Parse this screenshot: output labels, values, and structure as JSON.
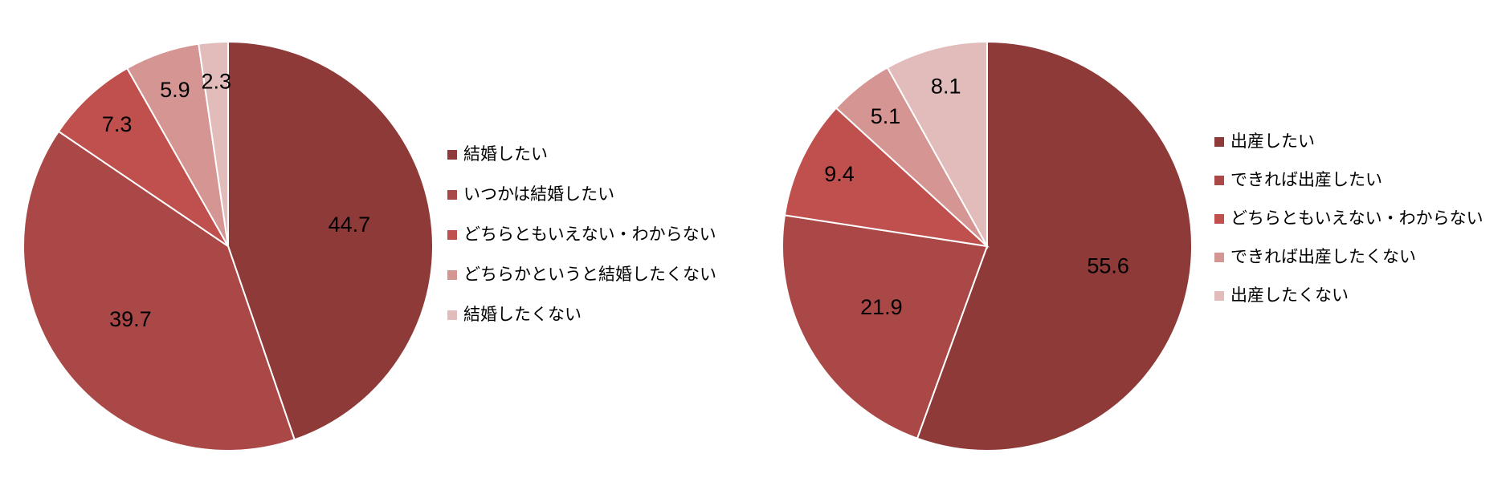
{
  "chart_data": [
    {
      "type": "pie",
      "categories": [
        "結婚したい",
        "いつかは結婚したい",
        "どちらともいえない・わからない",
        "どちらかというと結婚したくない",
        "結婚したくない"
      ],
      "values": [
        44.7,
        39.7,
        7.3,
        5.9,
        2.3
      ],
      "colors": [
        "#8e3a38",
        "#a94846",
        "#c0504d",
        "#d49593",
        "#e2bcbb"
      ]
    },
    {
      "type": "pie",
      "categories": [
        "出産したい",
        "できれば出産したい",
        "どちらともいえない・わからない",
        "できれば出産したくない",
        "出産したくない"
      ],
      "values": [
        55.6,
        21.9,
        9.4,
        5.1,
        8.1
      ],
      "colors": [
        "#8e3a38",
        "#a94846",
        "#c0504d",
        "#d49593",
        "#e2bcbb"
      ]
    }
  ]
}
